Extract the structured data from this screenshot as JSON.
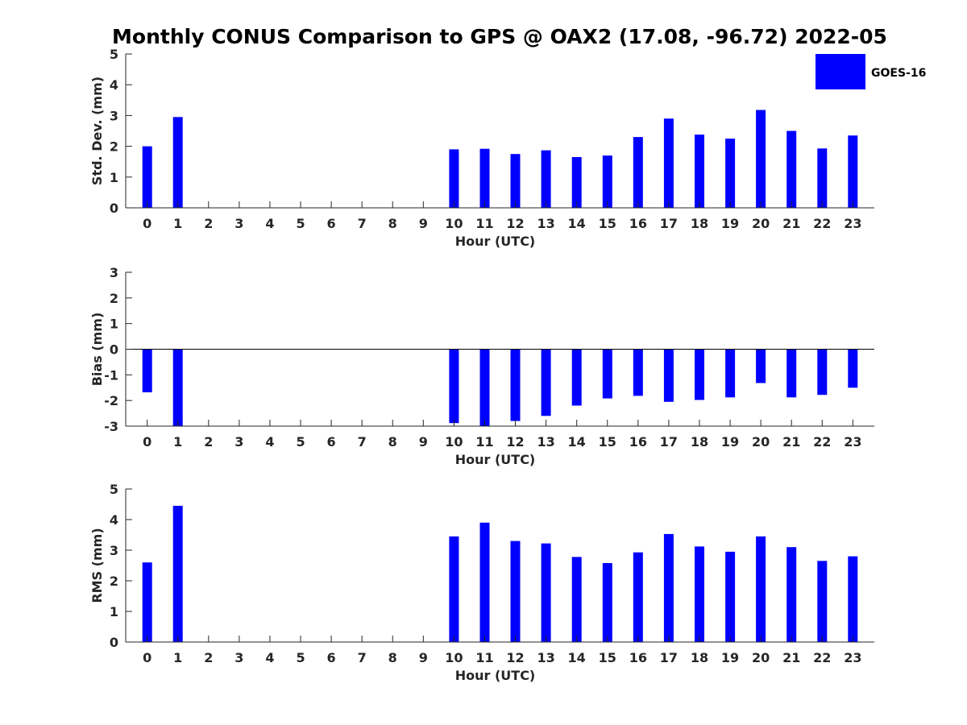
{
  "figure": {
    "title": "Monthly CONUS Comparison to GPS @ OAX2 (17.08, -96.72) 2022-05"
  },
  "legend": {
    "label": "GOES-16",
    "placement": "top-right",
    "color": "#0000ff"
  },
  "chart_data": [
    {
      "type": "bar",
      "xlabel": "Hour (UTC)",
      "ylabel": "Std. Dev. (mm)",
      "ylim": [
        0,
        5
      ],
      "yticks": [
        0,
        1,
        2,
        3,
        4,
        5
      ],
      "categories": [
        "0",
        "1",
        "2",
        "3",
        "4",
        "5",
        "6",
        "7",
        "8",
        "9",
        "10",
        "11",
        "12",
        "13",
        "14",
        "15",
        "16",
        "17",
        "18",
        "19",
        "20",
        "21",
        "22",
        "23"
      ],
      "series": [
        {
          "name": "GOES-16",
          "values": [
            2.0,
            2.95,
            null,
            null,
            null,
            null,
            null,
            null,
            null,
            null,
            1.9,
            1.92,
            1.75,
            1.87,
            1.65,
            1.7,
            2.3,
            2.9,
            2.38,
            2.25,
            3.18,
            2.5,
            1.93,
            2.35
          ]
        }
      ],
      "grid": false
    },
    {
      "type": "bar",
      "xlabel": "Hour (UTC)",
      "ylabel": "Bias (mm)",
      "ylim": [
        -3,
        3
      ],
      "yticks": [
        -3,
        -2,
        -1,
        0,
        1,
        2,
        3
      ],
      "categories": [
        "0",
        "1",
        "2",
        "3",
        "4",
        "5",
        "6",
        "7",
        "8",
        "9",
        "10",
        "11",
        "12",
        "13",
        "14",
        "15",
        "16",
        "17",
        "18",
        "19",
        "20",
        "21",
        "22",
        "23"
      ],
      "series": [
        {
          "name": "GOES-16",
          "values": [
            -1.68,
            -3.0,
            null,
            null,
            null,
            null,
            null,
            null,
            null,
            null,
            -2.88,
            -3.0,
            -2.8,
            -2.6,
            -2.2,
            -1.92,
            -1.82,
            -2.05,
            -1.98,
            -1.88,
            -1.32,
            -1.88,
            -1.78,
            -1.5
          ]
        }
      ],
      "grid": false
    },
    {
      "type": "bar",
      "xlabel": "Hour (UTC)",
      "ylabel": "RMS (mm)",
      "ylim": [
        0,
        5
      ],
      "yticks": [
        0,
        1,
        2,
        3,
        4,
        5
      ],
      "categories": [
        "0",
        "1",
        "2",
        "3",
        "4",
        "5",
        "6",
        "7",
        "8",
        "9",
        "10",
        "11",
        "12",
        "13",
        "14",
        "15",
        "16",
        "17",
        "18",
        "19",
        "20",
        "21",
        "22",
        "23"
      ],
      "series": [
        {
          "name": "GOES-16",
          "values": [
            2.6,
            4.45,
            null,
            null,
            null,
            null,
            null,
            null,
            null,
            null,
            3.45,
            3.9,
            3.3,
            3.22,
            2.78,
            2.58,
            2.93,
            3.53,
            3.12,
            2.95,
            3.45,
            3.1,
            2.65,
            2.8
          ]
        }
      ],
      "grid": false
    }
  ]
}
